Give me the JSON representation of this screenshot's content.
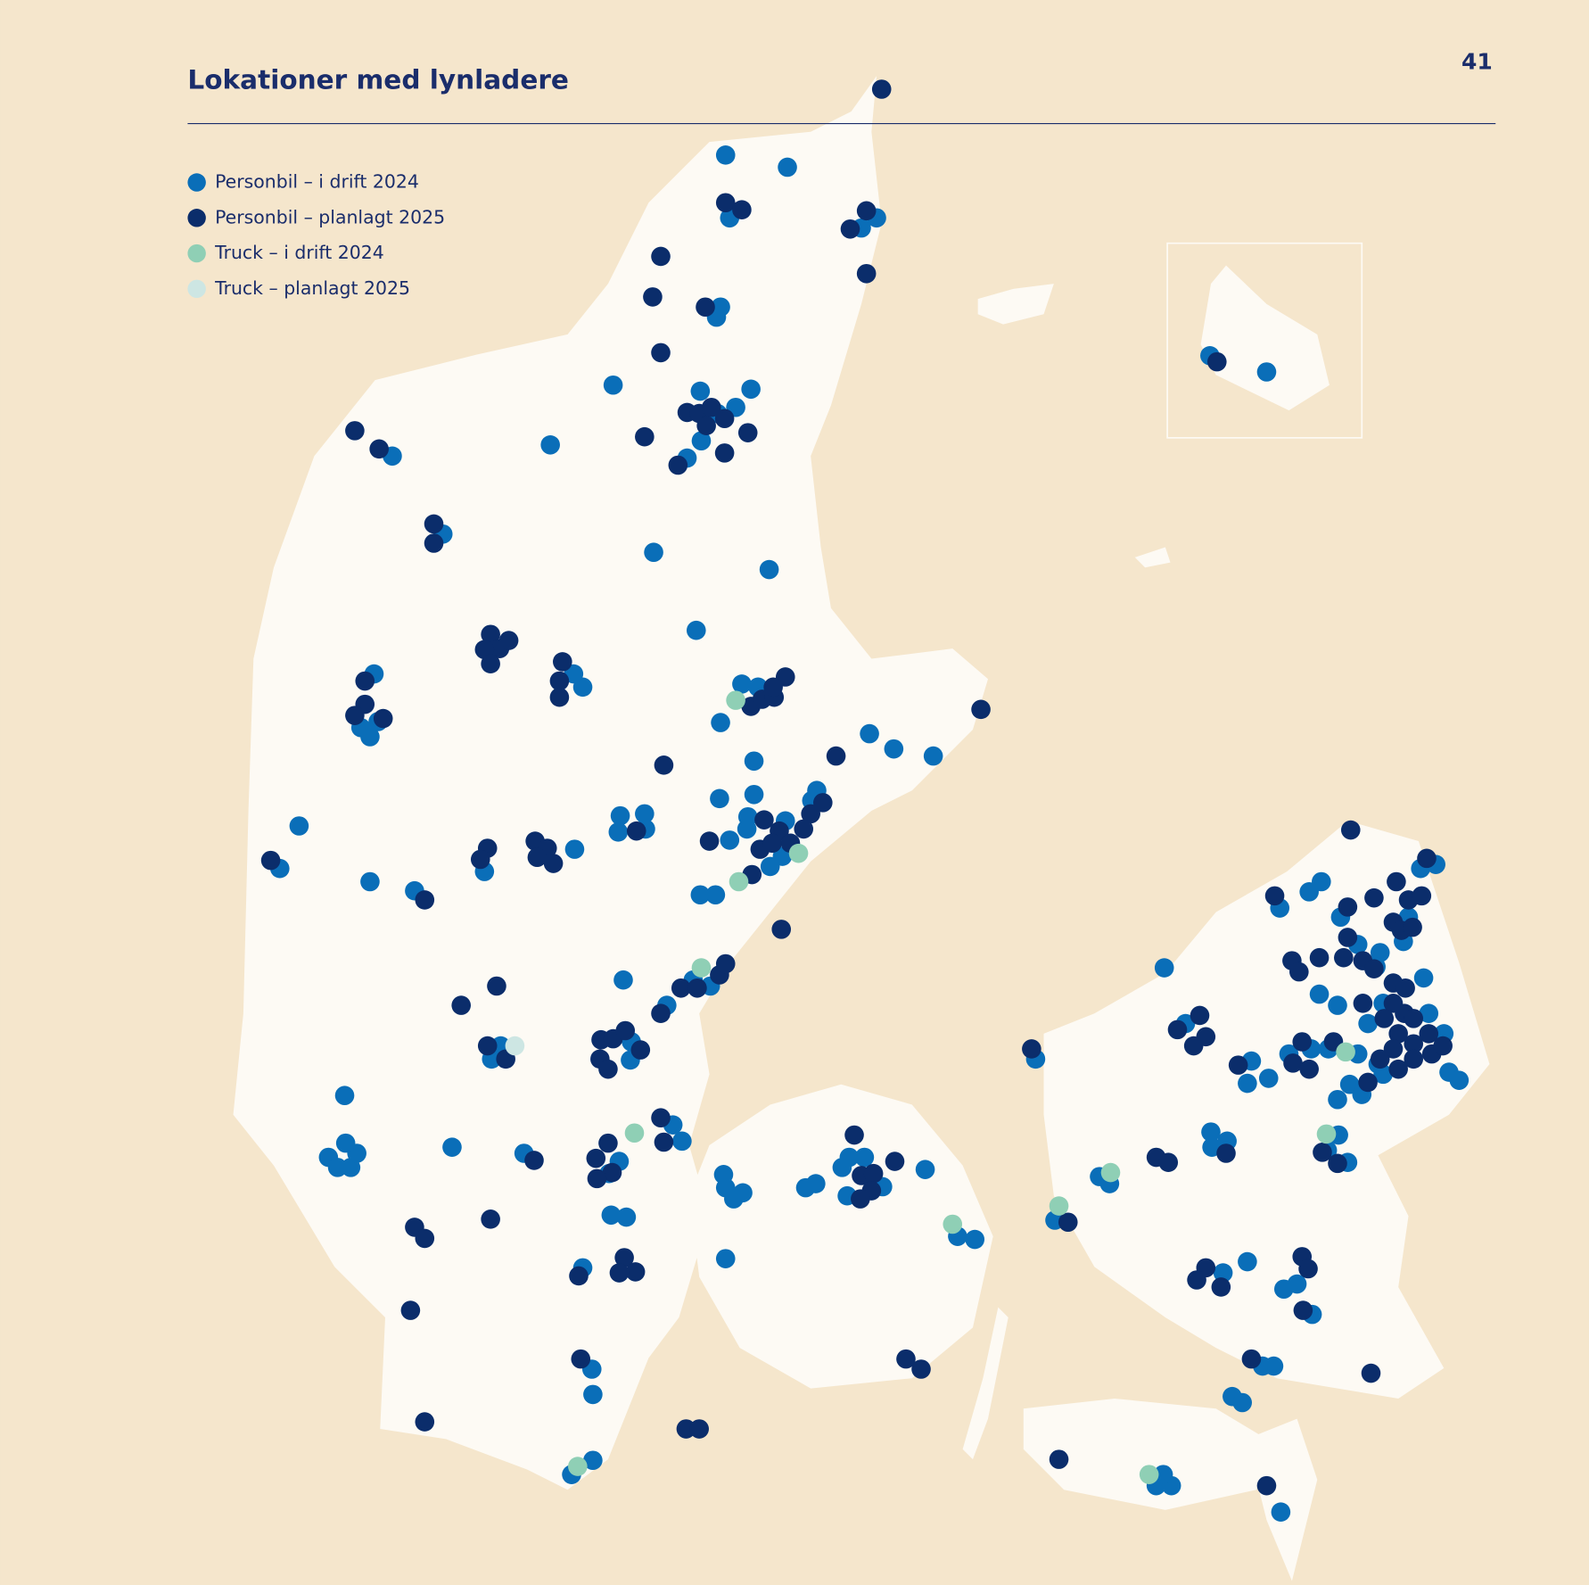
{
  "header": {
    "title": "Lokationer med lynladere",
    "page_number": "41"
  },
  "legend": [
    {
      "label": "Personbil – i drift 2024",
      "color": "#0a6eb8"
    },
    {
      "label": "Personbil – planlagt 2025",
      "color": "#0b2d6b"
    },
    {
      "label": "Truck – i drift 2024",
      "color": "#8fcfb5"
    },
    {
      "label": "Truck – planlagt 2025",
      "color": "#cde6e3"
    }
  ]
}
